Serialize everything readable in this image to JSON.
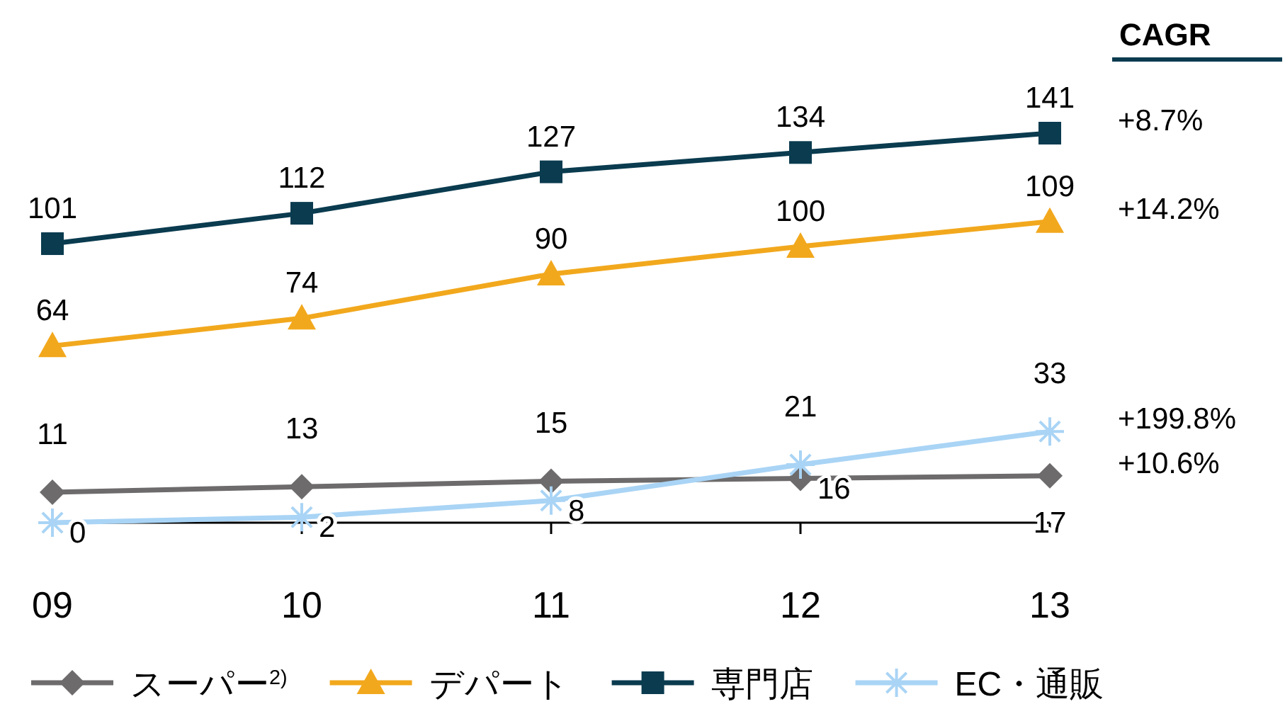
{
  "chart_data": {
    "type": "line",
    "categories": [
      "09",
      "10",
      "11",
      "12",
      "13"
    ],
    "data_labels": true,
    "legend": "bottom",
    "line_style": "solid",
    "series": [
      {
        "name": "スーパー$^{2)}$",
        "color": "#6d6b6b",
        "marker": "diamond",
        "values": [
          11,
          13,
          15,
          16,
          17
        ]
      },
      {
        "name": "デパート",
        "color": "#f2a81d",
        "marker": "triangle",
        "values": [
          64,
          74,
          90,
          100,
          109
        ]
      },
      {
        "name": "専門店",
        "color": "#0a3b4f",
        "marker": "square",
        "values": [
          101,
          112,
          127,
          134,
          141
        ]
      },
      {
        "name": "EC・通販",
        "color": "#a9d4f5",
        "marker": "cross",
        "values": [
          0,
          2,
          8,
          21,
          33
        ]
      }
    ],
    "annotations": [
      "CAGR",
      {
        "text": "+8.7%",
        "x": "13",
        "y": 141
      },
      {
        "text": "+14.2%",
        "x": "13",
        "y": 109
      },
      {
        "text": "+199.8%",
        "x": "13",
        "y": 33
      },
      {
        "text": "+10.6%",
        "x": "13",
        "y": 17
      }
    ]
  }
}
